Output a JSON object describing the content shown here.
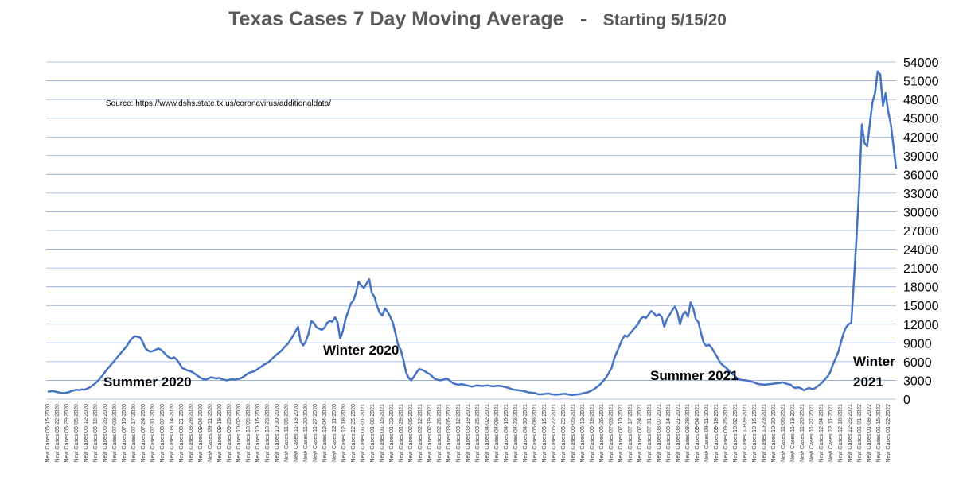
{
  "chart_data": {
    "type": "line",
    "title": "Texas Cases 7 Day Moving Average",
    "title_separator": "-",
    "subtitle": "Starting 5/15/20",
    "source": "Source:  https://www.dshs.state.tx.us/coronavirus/additionaldata/",
    "ylim": [
      0,
      54000
    ],
    "yticks": [
      0,
      3000,
      6000,
      9000,
      12000,
      15000,
      18000,
      21000,
      24000,
      27000,
      30000,
      33000,
      36000,
      39000,
      42000,
      45000,
      48000,
      51000,
      54000
    ],
    "grid": true,
    "legend": "none",
    "line_color": "#4472c4",
    "xtick_labels": [
      "New Cases 05-15-2020",
      "New Cases 05-22-2020",
      "New Cases 05-29-2020",
      "New Cases 06-05-2020",
      "New Cases 06-12-2020",
      "New Cases 06-19-2020",
      "New Cases 06-26-2020",
      "New Cases 07-03-2020",
      "New Cases 07-10-2020",
      "New Cases 07-17-2020",
      "New Cases 07-24-2020",
      "New Cases 07-31-2020",
      "New Cases 08-07-2020",
      "New Cases 08-14-2020",
      "New Cases 08-21-2020",
      "New Cases 08-28-2020",
      "New Cases 09-04-2020",
      "New Cases 09-11-2020",
      "New Cases 09-18-2020",
      "New Cases 09-25-2020",
      "New Cases 10-02-2020",
      "New Cases 10-09-2020",
      "New Cases 10-16-2020",
      "New Cases 10-23-2020",
      "New Cases 10-30-2020",
      "New Cases 11-06-2020",
      "New Cases 11-13-2020",
      "New Cases 11-20-2020",
      "New Cases 11-27-2020",
      "New Cases 12-04-2020",
      "New Cases 12-11-2020",
      "New Cases 12-18-2020",
      "New Cases 12-25-2020",
      "New Cases 01-01-2021",
      "New Cases 01-08-2021",
      "New Cases 01-15-2021",
      "New Cases 01-22-2021",
      "New Cases 01-29-2021",
      "New Cases 02-05-2021",
      "New Cases 02-12-2021",
      "New Cases 02-19-2021",
      "New Cases 02-26-2021",
      "New Cases 03-05-2021",
      "New Cases 03-12-2021",
      "New Cases 03-19-2021",
      "New Cases 03-25-2021",
      "New Cases 04-02-2021",
      "New Cases 04-09-2021",
      "New Cases 04-16-2021",
      "New Cases 04-23-2021",
      "New Cases 04-30-2021",
      "New Cases 05-08-2021",
      "New Cases 05-15-2021",
      "New Cases 05-22-2021",
      "New Cases 05-29-2021",
      "New Cases 06-05-2021",
      "New Cases 06-12-2021",
      "New Cases 06-19-2021",
      "New Cases 06-26-2021",
      "New Cases 07-03-2021",
      "New Cases 07-10-2021",
      "New Cases 07-17-2021",
      "New Cases 07-24-2021",
      "New Cases 07-31-2021",
      "New Cases 08-07-2021",
      "New Cases 08-14-2021",
      "New Cases 08-21-2021",
      "New Cases 08-28-2021",
      "New Cases 09-04-2021",
      "New Cases 09-11-2021",
      "New Cases 09-18-2021",
      "New Cases 09-25-2021",
      "New Cases 10-02-2021",
      "New Cases 10-09-2021",
      "New Cases 10-16-2021",
      "New Cases 10-23-2021",
      "New Cases 10-30-2021",
      "New Cases 11-06-2021",
      "New Cases 11-13-2021",
      "New Cases 11-20-2021",
      "New Cases 11-27-2021",
      "New Cases 12-04-2021",
      "New Cases 12-11-2021",
      "New Cases 12-18-2021",
      "New Cases 12-25-2021",
      "New Cases 01-01-2022",
      "New Cases 01-08-2022",
      "New Cases 01-15-2022",
      "New Cases 01-22-2022"
    ],
    "series": [
      {
        "values": [
          1200,
          1250,
          1300,
          1200,
          1100,
          1000,
          950,
          1050,
          1100,
          1300,
          1400,
          1500,
          1450,
          1550,
          1500,
          1700,
          1900,
          2200,
          2500,
          2900,
          3400,
          3900,
          4500,
          5000,
          5500,
          6000,
          6500,
          7000,
          7500,
          8000,
          8500,
          9200,
          9700,
          10100,
          10000,
          9900,
          9200,
          8200,
          7800,
          7600,
          7700,
          7900,
          8100,
          7900,
          7500,
          7000,
          6700,
          6500,
          6700,
          6300,
          5700,
          5000,
          4800,
          4600,
          4500,
          4300,
          4000,
          3700,
          3400,
          3200,
          3100,
          3300,
          3500,
          3400,
          3300,
          3400,
          3200,
          3100,
          3000,
          3100,
          3200,
          3100,
          3200,
          3300,
          3500,
          3800,
          4100,
          4300,
          4400,
          4600,
          4900,
          5200,
          5500,
          5700,
          6000,
          6400,
          6800,
          7200,
          7500,
          7900,
          8400,
          8800,
          9400,
          10100,
          10800,
          11600,
          9200,
          8600,
          9300,
          10500,
          12500,
          12200,
          11500,
          11300,
          11100,
          11400,
          12200,
          12500,
          12400,
          13100,
          12300,
          9700,
          10900,
          12800,
          14000,
          15300,
          15800,
          17000,
          18800,
          18200,
          17800,
          18500,
          19200,
          17000,
          16400,
          14900,
          13800,
          13400,
          14500,
          14000,
          13200,
          12200,
          10500,
          8600,
          7900,
          6300,
          4300,
          3400,
          3000,
          3600,
          4300,
          4800,
          4700,
          4500,
          4200,
          4000,
          3600,
          3200,
          3100,
          3000,
          3100,
          3300,
          3200,
          2800,
          2500,
          2400,
          2300,
          2400,
          2300,
          2200,
          2100,
          2000,
          2100,
          2200,
          2150,
          2100,
          2150,
          2200,
          2100,
          2050,
          2100,
          2150,
          2100,
          2000,
          1900,
          1800,
          1600,
          1500,
          1450,
          1400,
          1350,
          1250,
          1150,
          1050,
          1000,
          950,
          800,
          750,
          800,
          850,
          900,
          800,
          750,
          700,
          750,
          800,
          850,
          800,
          700,
          650,
          700,
          750,
          800,
          900,
          1000,
          1100,
          1300,
          1500,
          1800,
          2100,
          2500,
          3000,
          3500,
          4200,
          5000,
          6500,
          7500,
          8500,
          9500,
          10200,
          10000,
          10500,
          11000,
          11500,
          12000,
          12800,
          13200,
          13000,
          13500,
          14100,
          13800,
          13300,
          13600,
          13200,
          11600,
          12800,
          13500,
          14200,
          14800,
          13900,
          12000,
          13500,
          14000,
          13200,
          15500,
          14500,
          12800,
          12300,
          10500,
          9000,
          8500,
          8700,
          8200,
          7500,
          6800,
          6000,
          5500,
          5200,
          4800,
          4400,
          4000,
          3600,
          3200,
          3100,
          3050,
          3000,
          2900,
          2800,
          2700,
          2500,
          2400,
          2350,
          2300,
          2350,
          2400,
          2450,
          2500,
          2550,
          2600,
          2700,
          2500,
          2400,
          2300,
          1900,
          1800,
          1900,
          1700,
          1400,
          1600,
          1800,
          1600,
          1700,
          2000,
          2300,
          2700,
          3200,
          3600,
          4300,
          5500,
          6500,
          7500,
          9000,
          10500,
          11500,
          12000,
          12200,
          19000,
          26000,
          34000,
          44000,
          41000,
          40500,
          44000,
          47500,
          49000,
          52500,
          52000,
          47000,
          49000,
          46000,
          44000,
          40500,
          36900
        ],
        "color": "#4472c4"
      }
    ],
    "annotations": [
      {
        "text": "Summer 2020",
        "lines": [
          "Summer 2020"
        ]
      },
      {
        "text": "Winter 2020",
        "lines": [
          "Winter 2020"
        ]
      },
      {
        "text": "Summer 2021",
        "lines": [
          "Summer 2021"
        ]
      },
      {
        "text": "Winter 2021",
        "lines": [
          "Winter",
          "2021"
        ]
      }
    ]
  }
}
